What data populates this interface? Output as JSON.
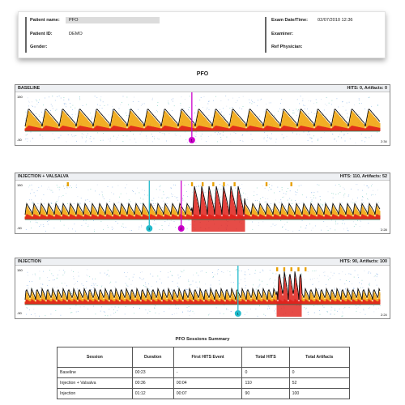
{
  "header": {
    "patient_name_label": "Patient name:",
    "patient_name_value": "PFO",
    "patient_id_label": "Patient ID:",
    "patient_id_value": "DEMO",
    "gender_label": "Gender:",
    "exam_datetime_label": "Exam Date/Time:",
    "exam_datetime_value": "02/07/2010 12:36",
    "examiner_label": "Examiner:",
    "ref_physician_label": "Ref Physician:"
  },
  "report_title": "PFO",
  "panels": [
    {
      "name": "BASELINE",
      "stats": "HITS: 0, Artifacts: 0",
      "axis_top": "150",
      "axis_bottom": "-50",
      "axis_right": "2:34",
      "density": "normal",
      "markers": [
        {
          "pos": 0.47,
          "color": "#cc00cc",
          "label": "1"
        }
      ],
      "ticks": []
    },
    {
      "name": "INJECTION + VALSALVA",
      "stats": "HITS: 110, Artifacts: 52",
      "axis_top": "150",
      "axis_bottom": "-50",
      "axis_right": "2:28",
      "density": "burst",
      "burst": [
        0.47,
        0.62
      ],
      "markers": [
        {
          "pos": 0.35,
          "color": "#22bbcc",
          "label": "1"
        },
        {
          "pos": 0.44,
          "color": "#cc00cc",
          "label": "2"
        }
      ],
      "ticks": [
        0.12,
        0.47,
        0.5,
        0.53,
        0.56,
        0.59,
        0.68,
        0.75
      ]
    },
    {
      "name": "INJECTION",
      "stats": "HITS: 90, Artifacts: 100",
      "axis_top": "150",
      "axis_bottom": "-50",
      "axis_right": "2:24",
      "density": "burst",
      "burst": [
        0.71,
        0.78
      ],
      "markers": [
        {
          "pos": 0.6,
          "color": "#22bbcc",
          "label": "1"
        }
      ],
      "ticks": [
        0.71,
        0.73,
        0.75,
        0.77,
        0.79
      ]
    }
  ],
  "summary": {
    "title": "PFO Sessions Summary",
    "columns": [
      "Session",
      "Duration",
      "First HITS Event",
      "Total HITS",
      "Total Artifacts"
    ],
    "rows": [
      [
        "Baseline",
        "00:23",
        "-",
        "0",
        "0"
      ],
      [
        "Injection + Valsalva",
        "00:36",
        "00:04",
        "110",
        "52"
      ],
      [
        "Injection",
        "01:12",
        "00:07",
        "90",
        "100"
      ]
    ]
  },
  "colors": {
    "marker_magenta": "#cc00cc",
    "marker_cyan": "#22bbcc",
    "hits_tick": "#e8a000",
    "spectrum_red": "#e0201a"
  }
}
